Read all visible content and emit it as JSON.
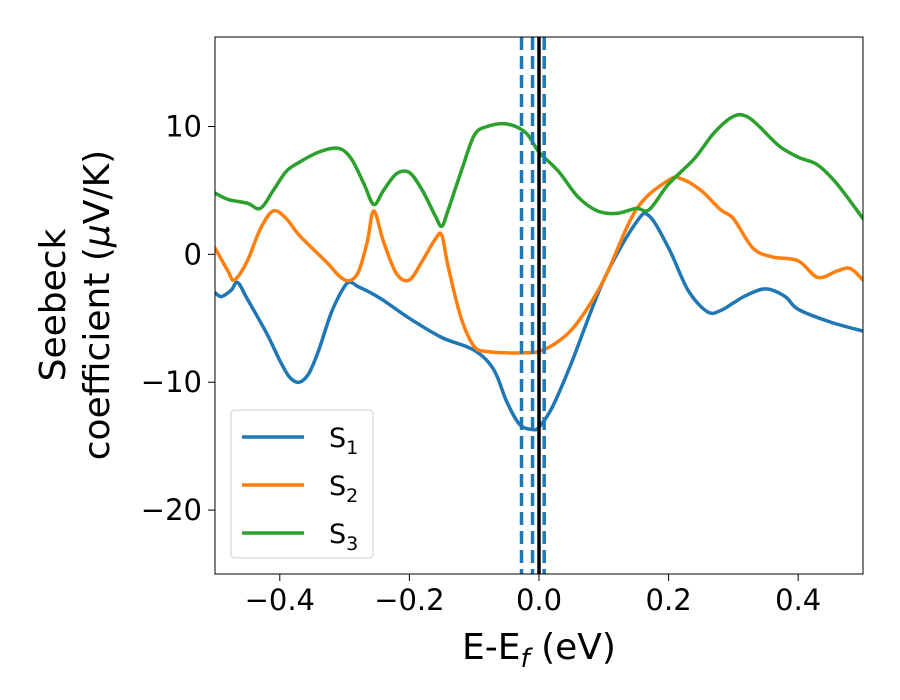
{
  "chart_data": {
    "type": "line",
    "xlabel": {
      "main": "E-E",
      "sub": "f",
      "unit": " (eV)"
    },
    "ylabel": {
      "line1": "Seebeck",
      "line2_prefix": "coefficient  (",
      "mu": "μ",
      "line2_suffix": "V/K)"
    },
    "xlim": [
      -0.5,
      0.5
    ],
    "ylim": [
      -25,
      17
    ],
    "xticks": [
      -0.4,
      -0.2,
      0.0,
      0.2,
      0.4
    ],
    "xtick_labels": [
      "−0.4",
      "−0.2",
      "0.0",
      "0.2",
      "0.4"
    ],
    "yticks": [
      -20,
      -10,
      0,
      10
    ],
    "ytick_labels": [
      "−20",
      "−10",
      "0",
      "10"
    ],
    "grid": false,
    "legend_position": "lower-left",
    "vlines": [
      {
        "x": -0.027,
        "style": "dashed",
        "color": "#1f77b4"
      },
      {
        "x": -0.01,
        "style": "dashed",
        "color": "#1f77b4"
      },
      {
        "x": 0.008,
        "style": "dashed",
        "color": "#1f77b4"
      },
      {
        "x": 0.0,
        "style": "solid",
        "color": "#000000"
      }
    ],
    "series": [
      {
        "name": "S",
        "sub": "1",
        "color": "#1f77b4",
        "x": [
          -0.5,
          -0.49,
          -0.475,
          -0.465,
          -0.45,
          -0.42,
          -0.4,
          -0.385,
          -0.37,
          -0.355,
          -0.34,
          -0.32,
          -0.3,
          -0.29,
          -0.28,
          -0.26,
          -0.24,
          -0.2,
          -0.15,
          -0.1,
          -0.07,
          -0.05,
          -0.03,
          -0.01,
          0.0,
          0.02,
          0.05,
          0.1,
          0.15,
          0.17,
          0.2,
          0.23,
          0.26,
          0.28,
          0.3,
          0.32,
          0.35,
          0.38,
          0.4,
          0.45,
          0.5
        ],
        "y": [
          -3.0,
          -3.3,
          -2.8,
          -2.2,
          -3.5,
          -6.2,
          -8.3,
          -9.6,
          -10.0,
          -9.3,
          -7.5,
          -4.5,
          -2.5,
          -2.2,
          -2.5,
          -3.0,
          -3.6,
          -5.0,
          -6.5,
          -7.5,
          -9.0,
          -11.5,
          -13.3,
          -13.7,
          -13.5,
          -12.0,
          -8.5,
          -2.0,
          2.5,
          3.0,
          0.5,
          -2.8,
          -4.5,
          -4.4,
          -3.8,
          -3.2,
          -2.7,
          -3.3,
          -4.3,
          -5.3,
          -6.0
        ]
      },
      {
        "name": "S",
        "sub": "2",
        "color": "#ff7f0e",
        "x": [
          -0.5,
          -0.48,
          -0.47,
          -0.45,
          -0.43,
          -0.41,
          -0.39,
          -0.37,
          -0.33,
          -0.3,
          -0.28,
          -0.265,
          -0.255,
          -0.24,
          -0.22,
          -0.2,
          -0.18,
          -0.16,
          -0.15,
          -0.14,
          -0.12,
          -0.1,
          -0.08,
          -0.05,
          -0.02,
          0.0,
          0.03,
          0.06,
          0.1,
          0.15,
          0.2,
          0.22,
          0.25,
          0.28,
          0.3,
          0.33,
          0.36,
          0.4,
          0.43,
          0.46,
          0.48,
          0.5
        ],
        "y": [
          0.5,
          -1.3,
          -2.0,
          -0.5,
          2.0,
          3.4,
          2.8,
          1.5,
          -0.5,
          -2.0,
          -1.5,
          1.0,
          3.4,
          1.0,
          -1.5,
          -2.0,
          -0.5,
          1.2,
          1.5,
          -1.0,
          -5.0,
          -7.2,
          -7.6,
          -7.7,
          -7.7,
          -7.6,
          -6.8,
          -5.3,
          -2.0,
          3.5,
          5.8,
          5.9,
          5.0,
          3.5,
          2.8,
          0.5,
          -0.2,
          -0.5,
          -1.8,
          -1.3,
          -1.1,
          -2.0
        ]
      },
      {
        "name": "S",
        "sub": "3",
        "color": "#2ca02c",
        "x": [
          -0.5,
          -0.48,
          -0.45,
          -0.43,
          -0.41,
          -0.39,
          -0.37,
          -0.34,
          -0.31,
          -0.29,
          -0.27,
          -0.255,
          -0.24,
          -0.22,
          -0.2,
          -0.18,
          -0.16,
          -0.15,
          -0.14,
          -0.12,
          -0.1,
          -0.08,
          -0.05,
          -0.02,
          0.0,
          0.03,
          0.06,
          0.09,
          0.12,
          0.15,
          0.17,
          0.2,
          0.24,
          0.27,
          0.3,
          0.32,
          0.34,
          0.37,
          0.4,
          0.43,
          0.46,
          0.5
        ],
        "y": [
          4.8,
          4.3,
          4.0,
          3.6,
          5.0,
          6.5,
          7.2,
          8.0,
          8.3,
          7.5,
          5.5,
          3.9,
          5.0,
          6.3,
          6.4,
          5.0,
          3.0,
          2.2,
          3.5,
          6.5,
          9.3,
          10.0,
          10.2,
          9.5,
          8.0,
          6.5,
          4.5,
          3.4,
          3.2,
          3.6,
          3.5,
          5.5,
          7.5,
          9.5,
          10.8,
          10.8,
          10.0,
          8.5,
          7.6,
          7.0,
          5.5,
          2.8
        ]
      }
    ]
  }
}
